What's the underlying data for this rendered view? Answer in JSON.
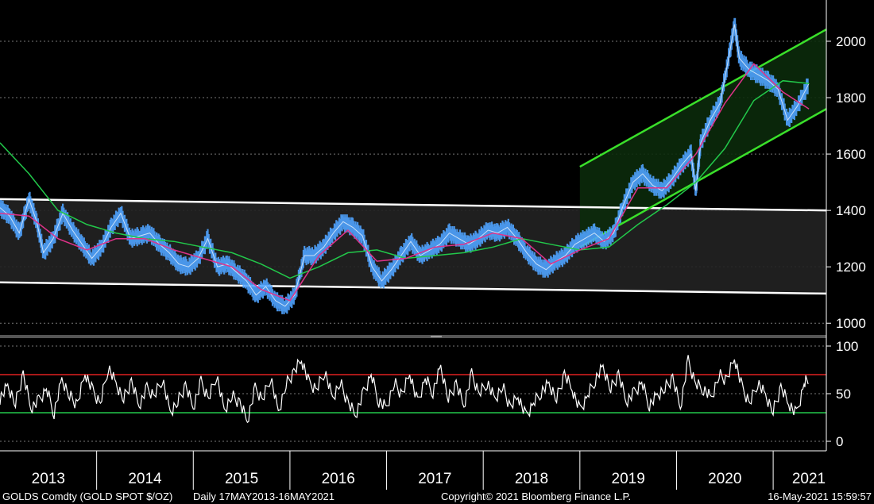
{
  "chart_data": [
    {
      "type": "line",
      "panel": "price",
      "ylim": [
        950,
        2090
      ],
      "yticks": [
        "2000",
        "1800",
        "1600",
        "1400",
        "1200",
        "1000"
      ],
      "grid": true,
      "series": [
        {
          "role": "candles",
          "color": "#4fa3ff",
          "x": [
            2013.0,
            2013.1,
            2013.2,
            2013.3,
            2013.38,
            2013.45,
            2013.55,
            2013.65,
            2013.75,
            2013.85,
            2013.95,
            2014.05,
            2014.15,
            2014.25,
            2014.35,
            2014.45,
            2014.55,
            2014.65,
            2014.75,
            2014.85,
            2014.95,
            2015.05,
            2015.15,
            2015.25,
            2015.35,
            2015.45,
            2015.55,
            2015.65,
            2015.75,
            2015.85,
            2015.95,
            2016.05,
            2016.15,
            2016.25,
            2016.35,
            2016.45,
            2016.55,
            2016.65,
            2016.75,
            2016.85,
            2016.95,
            2017.05,
            2017.15,
            2017.25,
            2017.35,
            2017.45,
            2017.55,
            2017.65,
            2017.75,
            2017.85,
            2017.95,
            2018.05,
            2018.15,
            2018.25,
            2018.35,
            2018.45,
            2018.55,
            2018.65,
            2018.75,
            2018.85,
            2018.95,
            2019.05,
            2019.15,
            2019.25,
            2019.35,
            2019.45,
            2019.55,
            2019.65,
            2019.75,
            2019.85,
            2019.95,
            2020.05,
            2020.15,
            2020.2,
            2020.25,
            2020.35,
            2020.45,
            2020.55,
            2020.6,
            2020.65,
            2020.75,
            2020.85,
            2020.95,
            2021.05,
            2021.15,
            2021.25,
            2021.37
          ],
          "y": [
            1410,
            1380,
            1320,
            1440,
            1360,
            1250,
            1300,
            1390,
            1330,
            1280,
            1230,
            1270,
            1340,
            1390,
            1300,
            1310,
            1320,
            1280,
            1250,
            1210,
            1200,
            1230,
            1300,
            1200,
            1210,
            1180,
            1150,
            1100,
            1130,
            1080,
            1060,
            1100,
            1240,
            1240,
            1270,
            1320,
            1360,
            1340,
            1310,
            1200,
            1150,
            1190,
            1240,
            1290,
            1240,
            1260,
            1280,
            1320,
            1300,
            1280,
            1300,
            1330,
            1320,
            1340,
            1300,
            1250,
            1210,
            1190,
            1220,
            1240,
            1280,
            1300,
            1320,
            1290,
            1320,
            1420,
            1500,
            1530,
            1490,
            1470,
            1510,
            1560,
            1600,
            1470,
            1640,
            1720,
            1780,
            1960,
            2060,
            1940,
            1900,
            1880,
            1860,
            1830,
            1720,
            1770,
            1850
          ]
        },
        {
          "role": "ma-fast",
          "color": "#e0328a",
          "x": [
            2013.0,
            2013.3,
            2013.6,
            2013.9,
            2014.2,
            2014.5,
            2014.8,
            2015.1,
            2015.4,
            2015.7,
            2016.0,
            2016.3,
            2016.6,
            2016.9,
            2017.2,
            2017.5,
            2017.8,
            2018.1,
            2018.4,
            2018.7,
            2019.0,
            2019.3,
            2019.6,
            2019.9,
            2020.2,
            2020.5,
            2020.8,
            2021.1,
            2021.37
          ],
          "y": [
            1390,
            1380,
            1300,
            1260,
            1300,
            1300,
            1260,
            1230,
            1200,
            1120,
            1080,
            1240,
            1330,
            1220,
            1230,
            1270,
            1280,
            1320,
            1300,
            1210,
            1260,
            1300,
            1480,
            1480,
            1600,
            1780,
            1920,
            1820,
            1760
          ]
        },
        {
          "role": "ma-slow",
          "color": "#22c84a",
          "x": [
            2013.0,
            2013.3,
            2013.6,
            2013.9,
            2014.2,
            2014.5,
            2014.8,
            2015.1,
            2015.4,
            2015.7,
            2016.0,
            2016.3,
            2016.6,
            2016.9,
            2017.2,
            2017.5,
            2017.8,
            2018.1,
            2018.4,
            2018.7,
            2019.0,
            2019.3,
            2019.6,
            2019.9,
            2020.2,
            2020.5,
            2020.8,
            2021.1,
            2021.37
          ],
          "y": [
            1640,
            1530,
            1400,
            1350,
            1320,
            1300,
            1290,
            1270,
            1250,
            1210,
            1160,
            1200,
            1250,
            1260,
            1230,
            1240,
            1250,
            1270,
            1300,
            1280,
            1260,
            1270,
            1350,
            1420,
            1500,
            1620,
            1790,
            1860,
            1850
          ]
        }
      ],
      "channels": [
        {
          "role": "range",
          "color": "#ffffff",
          "fill": "#222222",
          "upper": {
            "x": [
              2013.0,
              2021.55
            ],
            "y": [
              1440,
              1400
            ]
          },
          "lower": {
            "x": [
              2013.0,
              2021.55
            ],
            "y": [
              1145,
              1105
            ]
          }
        },
        {
          "role": "uptrend",
          "color": "#3ae02a",
          "fill": "#0b2a0b",
          "upper": {
            "x": [
              2019.0,
              2021.55
            ],
            "y": [
              1555,
              2042
            ]
          },
          "lower": {
            "x": [
              2019.0,
              2021.55
            ],
            "y": [
              1270,
              1760
            ]
          }
        }
      ]
    },
    {
      "type": "line",
      "panel": "rsi",
      "ylim": [
        -5,
        105
      ],
      "yticks": [
        "100",
        "50",
        "0"
      ],
      "reference_lines": [
        {
          "value": 70,
          "color": "#e02020"
        },
        {
          "value": 30,
          "color": "#22c84a"
        }
      ],
      "series": [
        {
          "color": "#ffffff",
          "x": [
            2013.0,
            2013.08,
            2013.16,
            2013.24,
            2013.32,
            2013.4,
            2013.48,
            2013.56,
            2013.64,
            2013.72,
            2013.8,
            2013.88,
            2013.96,
            2014.04,
            2014.12,
            2014.2,
            2014.28,
            2014.36,
            2014.44,
            2014.52,
            2014.6,
            2014.68,
            2014.76,
            2014.84,
            2014.92,
            2015.0,
            2015.08,
            2015.16,
            2015.24,
            2015.32,
            2015.4,
            2015.48,
            2015.56,
            2015.64,
            2015.72,
            2015.8,
            2015.88,
            2015.96,
            2016.04,
            2016.12,
            2016.2,
            2016.28,
            2016.36,
            2016.44,
            2016.52,
            2016.6,
            2016.68,
            2016.76,
            2016.84,
            2016.92,
            2017.0,
            2017.08,
            2017.16,
            2017.24,
            2017.32,
            2017.4,
            2017.48,
            2017.56,
            2017.64,
            2017.72,
            2017.8,
            2017.88,
            2017.96,
            2018.04,
            2018.12,
            2018.2,
            2018.28,
            2018.36,
            2018.44,
            2018.52,
            2018.6,
            2018.68,
            2018.76,
            2018.84,
            2018.92,
            2019.0,
            2019.08,
            2019.16,
            2019.24,
            2019.32,
            2019.4,
            2019.48,
            2019.56,
            2019.64,
            2019.72,
            2019.8,
            2019.88,
            2019.96,
            2020.04,
            2020.12,
            2020.2,
            2020.28,
            2020.36,
            2020.44,
            2020.52,
            2020.6,
            2020.68,
            2020.76,
            2020.84,
            2020.92,
            2021.0,
            2021.08,
            2021.16,
            2021.24,
            2021.32,
            2021.37
          ],
          "y": [
            45,
            58,
            40,
            70,
            35,
            42,
            55,
            30,
            65,
            48,
            38,
            72,
            52,
            40,
            78,
            60,
            45,
            62,
            38,
            55,
            48,
            66,
            30,
            42,
            58,
            36,
            62,
            45,
            70,
            32,
            48,
            40,
            22,
            55,
            44,
            68,
            30,
            60,
            72,
            86,
            60,
            55,
            74,
            45,
            62,
            40,
            28,
            50,
            70,
            42,
            35,
            62,
            48,
            72,
            40,
            66,
            52,
            78,
            45,
            60,
            38,
            70,
            50,
            62,
            44,
            58,
            35,
            48,
            26,
            40,
            52,
            60,
            45,
            70,
            55,
            32,
            48,
            65,
            78,
            55,
            70,
            42,
            50,
            62,
            38,
            48,
            56,
            66,
            36,
            84,
            60,
            55,
            45,
            70,
            64,
            88,
            55,
            40,
            62,
            48,
            32,
            56,
            40,
            28,
            60,
            68
          ]
        }
      ]
    }
  ],
  "x_axis": {
    "ticks": [
      "2013",
      "2014",
      "2015",
      "2016",
      "2017",
      "2018",
      "2019",
      "2020",
      "2021"
    ]
  },
  "footer": {
    "security": "GOLDS Comdty (GOLD SPOT $/OZ)",
    "period": "Daily 17MAY2013-16MAY2021",
    "copyright": "Copyright© 2021 Bloomberg Finance L.P.",
    "timestamp": "16-May-2021 15:59:57"
  }
}
